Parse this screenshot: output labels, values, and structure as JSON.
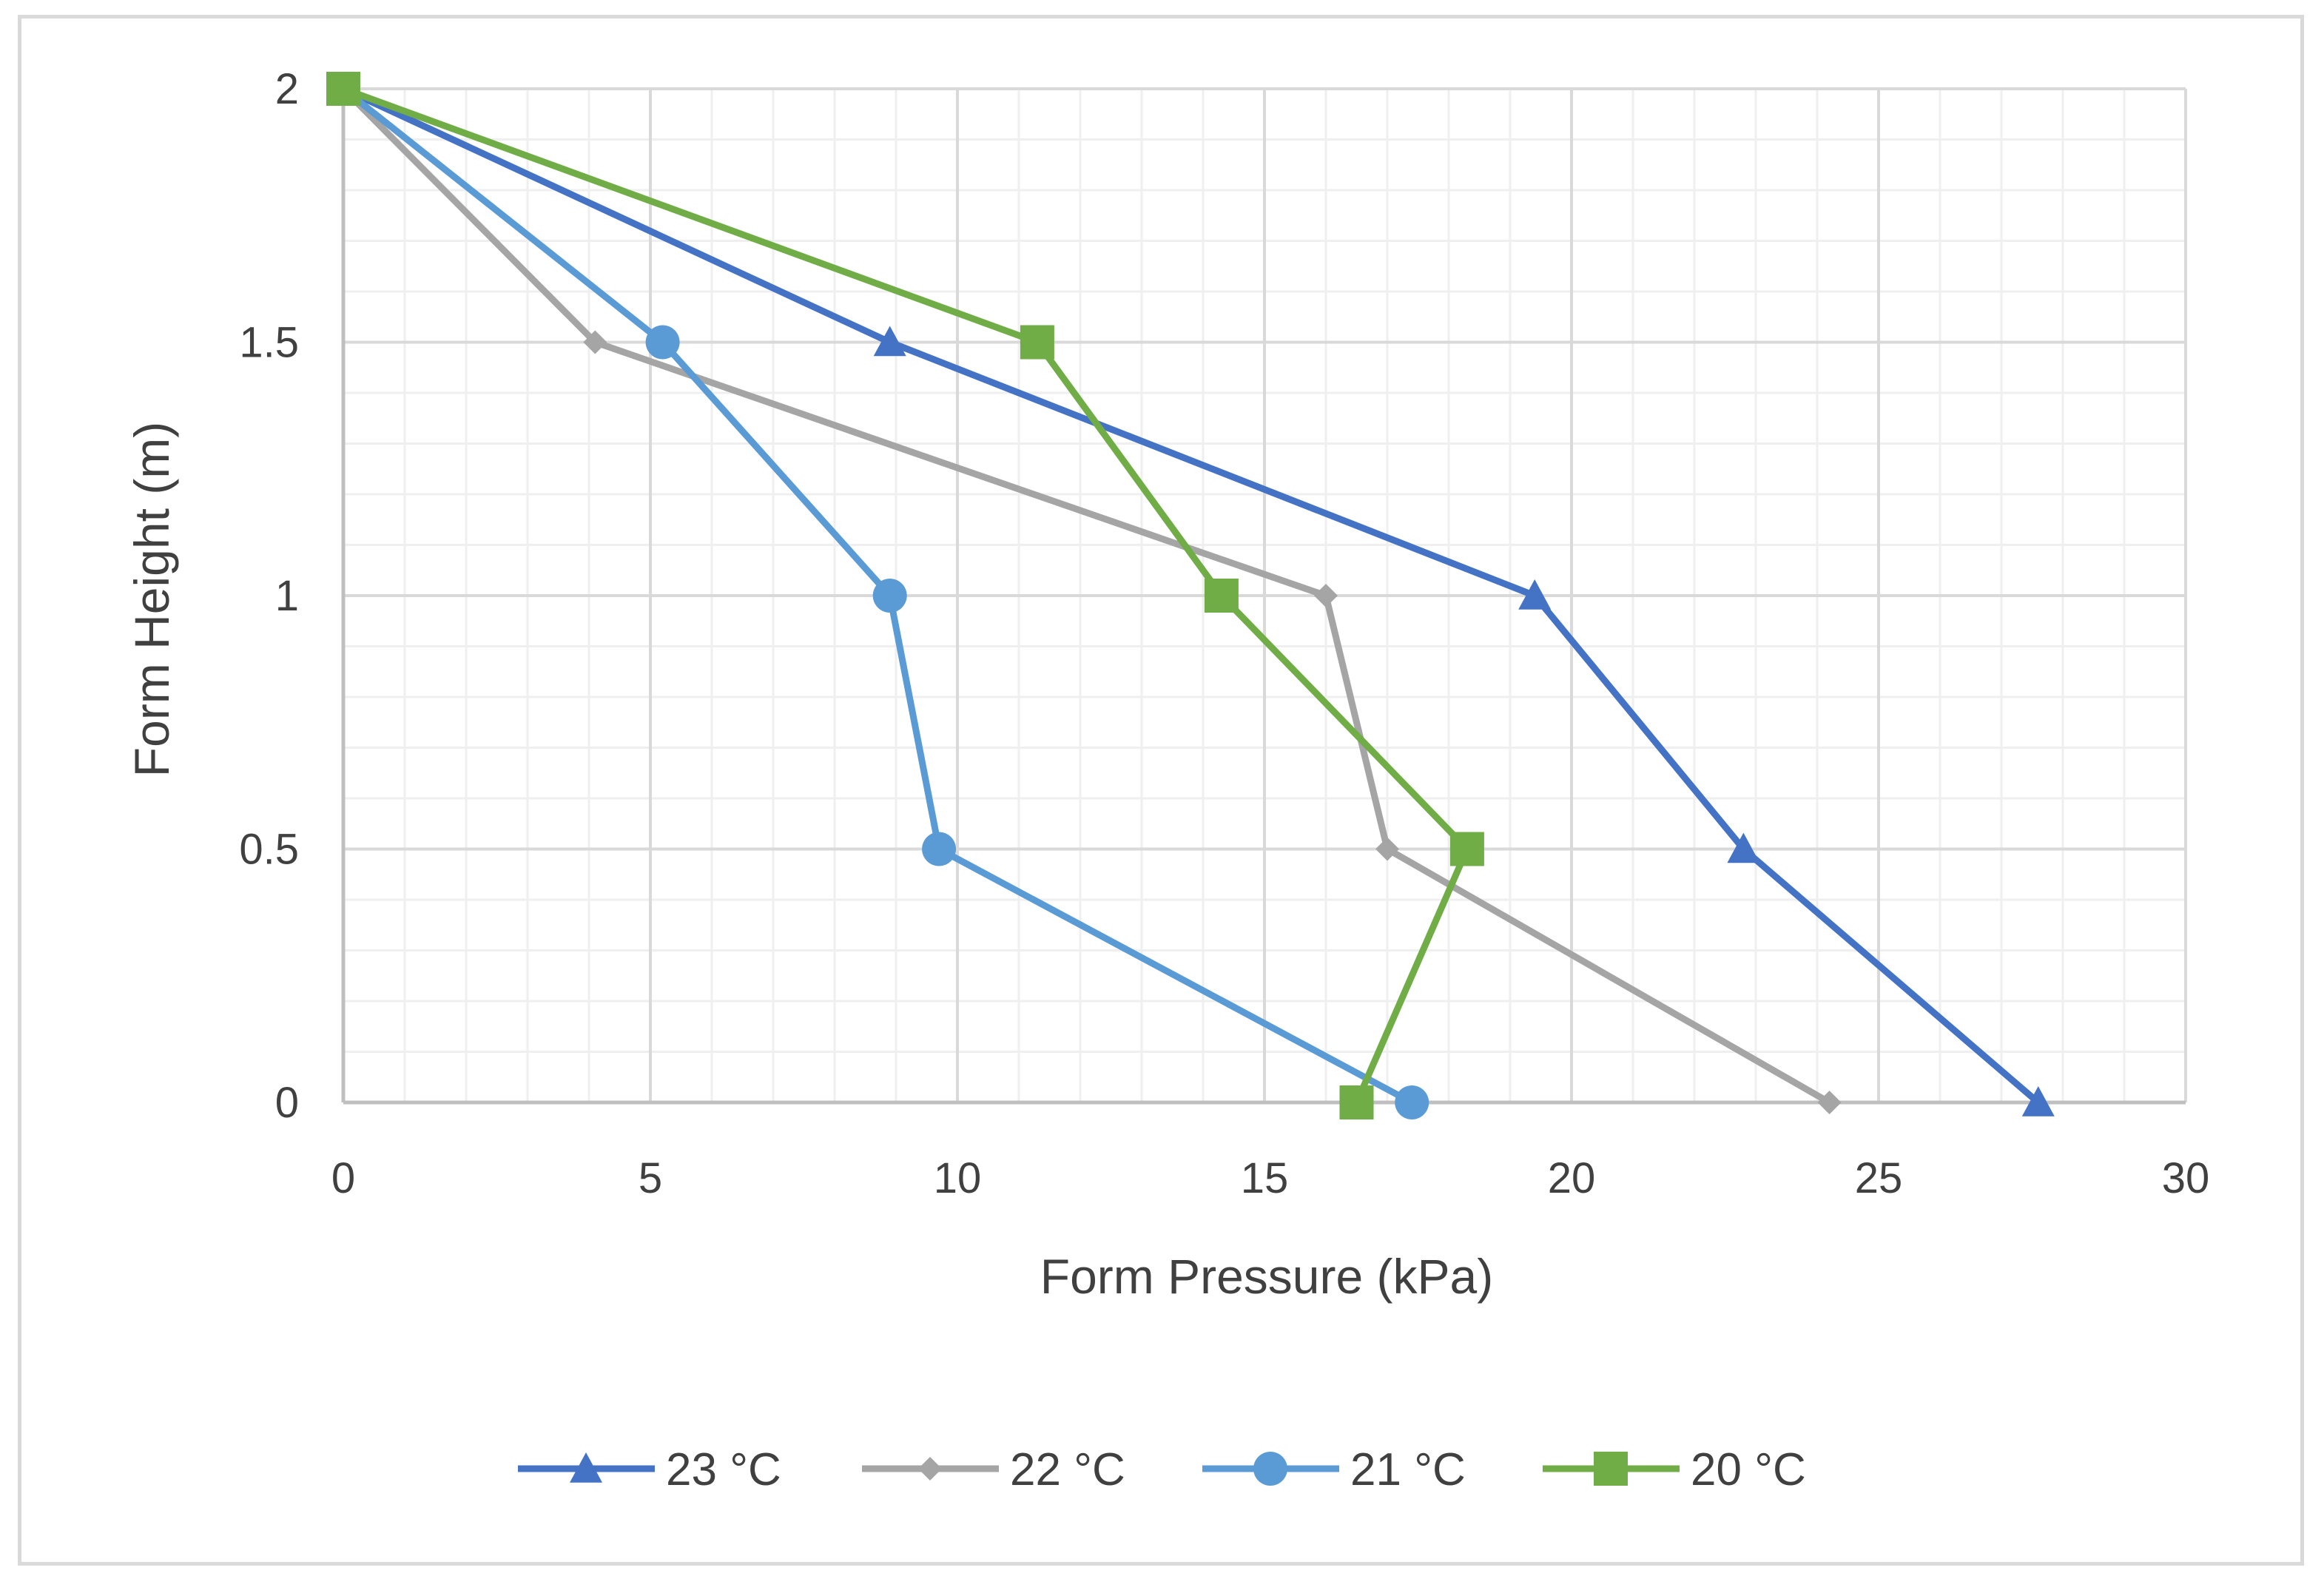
{
  "chart_data": {
    "type": "line",
    "title": "",
    "xlabel": "Form Pressure (kPa)",
    "ylabel": "Form Height (m)",
    "xlim": [
      0,
      30
    ],
    "ylim": [
      0,
      2
    ],
    "xticks": [
      0,
      5,
      10,
      15,
      20,
      25,
      30
    ],
    "yticks": [
      0,
      0.5,
      1,
      1.5,
      2
    ],
    "xtick_labels": [
      "0",
      "5",
      "10",
      "15",
      "20",
      "25",
      "30"
    ],
    "ytick_labels": [
      "0",
      "0.5",
      "1",
      "1.5",
      "2"
    ],
    "grid": true,
    "legend_position": "bottom",
    "series": [
      {
        "name": "23 °C",
        "color": "#4472c4",
        "marker": "triangle",
        "x": [
          0,
          8.9,
          19.4,
          22.8,
          27.6
        ],
        "y": [
          2,
          1.5,
          1,
          0.5,
          0
        ]
      },
      {
        "name": "22 °C",
        "color": "#a5a5a5",
        "marker": "diamond",
        "x": [
          0,
          4.1,
          16.0,
          17.0,
          24.2
        ],
        "y": [
          2,
          1.5,
          1,
          0.5,
          0
        ]
      },
      {
        "name": "21 °C",
        "color": "#5b9bd5",
        "marker": "circle",
        "x": [
          0,
          5.2,
          8.9,
          9.7,
          17.4
        ],
        "y": [
          2,
          1.5,
          1,
          0.5,
          0
        ]
      },
      {
        "name": "20 °C",
        "color": "#70ad47",
        "marker": "square",
        "x": [
          0,
          11.3,
          14.3,
          18.3,
          16.5
        ],
        "y": [
          2,
          1.5,
          1,
          0.5,
          0
        ]
      }
    ]
  }
}
